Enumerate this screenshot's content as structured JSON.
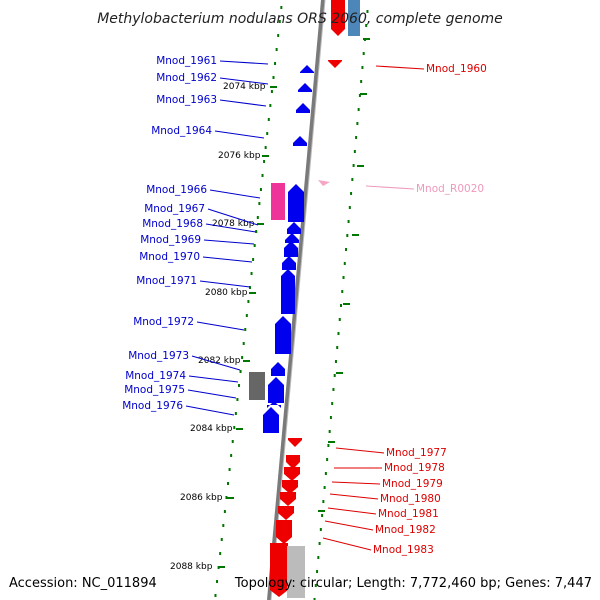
{
  "title": "Methylobacterium nodulans ORS 2060, complete genome",
  "footer": {
    "accession": "Accession: NC_011894",
    "topology": "Topology: circular; Length: 7,772,460 bp; Genes: 7,447"
  },
  "colors": {
    "forward_gene": "#0000ee",
    "reverse_gene": "#ee0000",
    "rna": "#ee3399",
    "pseudo": "#666666",
    "label_left": "#0000cc",
    "label_right": "#dd0000",
    "label_rna": "#ee99bb",
    "tick": "#007700",
    "backbone": "#808080"
  },
  "ticks": [
    "2074 kbp",
    "2076 kbp",
    "2078 kbp",
    "2080 kbp",
    "2082 kbp",
    "2084 kbp",
    "2086 kbp",
    "2088 kbp"
  ],
  "left_labels": [
    "Mnod_1961",
    "Mnod_1962",
    "Mnod_1963",
    "Mnod_1964",
    "Mnod_1966",
    "Mnod_1967",
    "Mnod_1968",
    "Mnod_1969",
    "Mnod_1970",
    "Mnod_1971",
    "Mnod_1972",
    "Mnod_1973",
    "Mnod_1974",
    "Mnod_1975",
    "Mnod_1976"
  ],
  "right_labels": [
    "Mnod_1960",
    "Mnod_R0020",
    "Mnod_1977",
    "Mnod_1978",
    "Mnod_1979",
    "Mnod_1980",
    "Mnod_1981",
    "Mnod_1982",
    "Mnod_1983"
  ]
}
